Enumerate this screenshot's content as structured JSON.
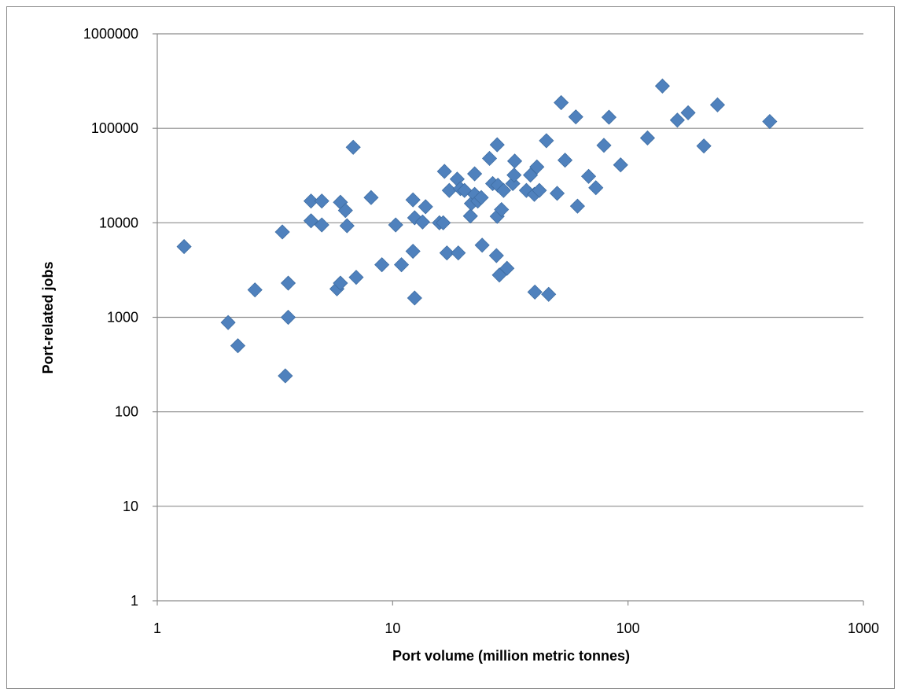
{
  "chart_data": {
    "type": "scatter",
    "title": "",
    "xlabel": "Port volume (million  metric tonnes)",
    "ylabel": "Port-related jobs",
    "x_scale": "log",
    "y_scale": "log",
    "xlim": [
      1,
      1000
    ],
    "ylim": [
      1,
      1000000
    ],
    "x_ticks": [
      "1",
      "10",
      "100",
      "1000"
    ],
    "y_ticks": [
      "1",
      "10",
      "100",
      "1000",
      "10000",
      "100000",
      "1000000"
    ],
    "grid": "horizontal",
    "legend": "none",
    "marker_color": "#4f81bd",
    "marker_shape": "diamond",
    "points": [
      [
        1.3,
        5600
      ],
      [
        2.0,
        880
      ],
      [
        2.2,
        500
      ],
      [
        2.6,
        1950
      ],
      [
        3.4,
        8000
      ],
      [
        3.5,
        240
      ],
      [
        3.6,
        2300
      ],
      [
        3.6,
        1000
      ],
      [
        4.5,
        17000
      ],
      [
        4.5,
        10500
      ],
      [
        5.0,
        17000
      ],
      [
        5.0,
        9500
      ],
      [
        5.8,
        2000
      ],
      [
        6.0,
        16500
      ],
      [
        6.0,
        2300
      ],
      [
        6.3,
        13500
      ],
      [
        6.4,
        9300
      ],
      [
        6.8,
        63000
      ],
      [
        7.0,
        2650
      ],
      [
        8.1,
        18500
      ],
      [
        9.0,
        3600
      ],
      [
        10.3,
        9500
      ],
      [
        10.9,
        3600
      ],
      [
        12.2,
        17500
      ],
      [
        12.2,
        5000
      ],
      [
        12.4,
        11300
      ],
      [
        12.4,
        1600
      ],
      [
        13.4,
        10200
      ],
      [
        13.8,
        14800
      ],
      [
        15.8,
        10000
      ],
      [
        16.4,
        10000
      ],
      [
        16.6,
        35000
      ],
      [
        17.0,
        4800
      ],
      [
        17.4,
        22000
      ],
      [
        18.8,
        29000
      ],
      [
        19.0,
        4800
      ],
      [
        19.4,
        23000
      ],
      [
        20.2,
        22000
      ],
      [
        21.4,
        11800
      ],
      [
        21.6,
        16000
      ],
      [
        22.3,
        33000
      ],
      [
        22.3,
        20000
      ],
      [
        23.0,
        17000
      ],
      [
        23.8,
        18500
      ],
      [
        24.0,
        5800
      ],
      [
        25.8,
        48000
      ],
      [
        26.6,
        26000
      ],
      [
        27.6,
        4500
      ],
      [
        27.8,
        67000
      ],
      [
        27.8,
        11700
      ],
      [
        28.0,
        25000
      ],
      [
        28.4,
        2800
      ],
      [
        29.0,
        13800
      ],
      [
        29.6,
        22000
      ],
      [
        30.6,
        3300
      ],
      [
        32.4,
        26000
      ],
      [
        32.8,
        32000
      ],
      [
        33.0,
        45000
      ],
      [
        37.0,
        22000
      ],
      [
        38.5,
        32000
      ],
      [
        40.0,
        20000
      ],
      [
        40.2,
        1850
      ],
      [
        41.0,
        39000
      ],
      [
        42.0,
        22000
      ],
      [
        45.0,
        74000
      ],
      [
        46.0,
        1750
      ],
      [
        50.0,
        20500
      ],
      [
        52.0,
        187000
      ],
      [
        54.0,
        46000
      ],
      [
        60.0,
        132000
      ],
      [
        61.0,
        15000
      ],
      [
        68.0,
        31000
      ],
      [
        73.0,
        23500
      ],
      [
        79.0,
        66000
      ],
      [
        83.0,
        131000
      ],
      [
        93.0,
        41000
      ],
      [
        121.0,
        79000
      ],
      [
        140.0,
        280000
      ],
      [
        162.0,
        122000
      ],
      [
        180.0,
        146000
      ],
      [
        210.0,
        65000
      ],
      [
        240.0,
        177000
      ],
      [
        400.0,
        118000
      ]
    ]
  }
}
